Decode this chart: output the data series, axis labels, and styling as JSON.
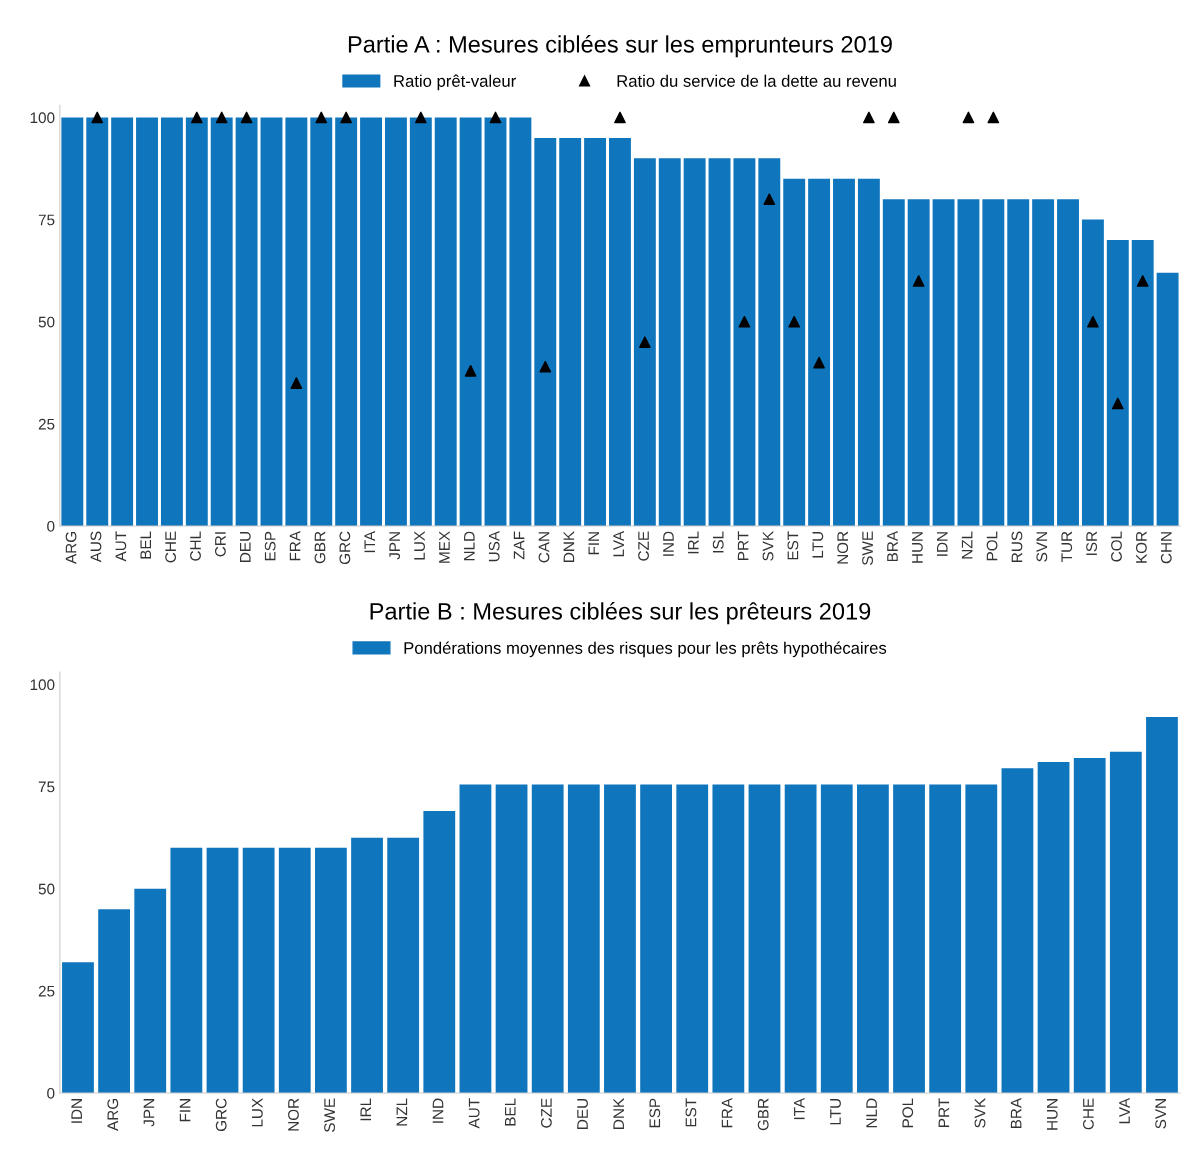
{
  "chart_data": [
    {
      "type": "bar",
      "title": "Partie A : Mesures ciblées sur les emprunteurs 2019",
      "categories": [
        "ARG",
        "AUS",
        "AUT",
        "BEL",
        "CHE",
        "CHL",
        "CRI",
        "DEU",
        "ESP",
        "FRA",
        "GBR",
        "GRC",
        "ITA",
        "JPN",
        "LUX",
        "MEX",
        "NLD",
        "USA",
        "ZAF",
        "CAN",
        "DNK",
        "FIN",
        "LVA",
        "CZE",
        "IND",
        "IRL",
        "ISL",
        "PRT",
        "SVK",
        "EST",
        "LTU",
        "NOR",
        "SWE",
        "BRA",
        "HUN",
        "IDN",
        "NZL",
        "POL",
        "RUS",
        "SVN",
        "TUR",
        "ISR",
        "COL",
        "KOR",
        "CHN"
      ],
      "series": [
        {
          "name": "Ratio prêt-valeur",
          "color": "#0f75bc",
          "values": [
            100,
            100,
            100,
            100,
            100,
            100,
            100,
            100,
            100,
            100,
            100,
            100,
            100,
            100,
            100,
            100,
            100,
            100,
            100,
            95,
            95,
            95,
            95,
            90,
            90,
            90,
            90,
            90,
            90,
            85,
            85,
            85,
            85,
            80,
            80,
            80,
            80,
            80,
            80,
            80,
            80,
            75,
            70,
            70,
            62
          ]
        },
        {
          "name": "Ratio du service de la dette au revenu",
          "type": "scatter",
          "marker": "triangle",
          "color": "#000000",
          "values": [
            null,
            100,
            null,
            null,
            null,
            100,
            100,
            100,
            null,
            35,
            100,
            100,
            null,
            null,
            100,
            null,
            38,
            100,
            null,
            39,
            null,
            null,
            100,
            45,
            null,
            null,
            null,
            50,
            80,
            50,
            40,
            null,
            100,
            100,
            60,
            null,
            100,
            100,
            null,
            null,
            null,
            50,
            30,
            60,
            null
          ]
        }
      ],
      "ylim": [
        0,
        103
      ],
      "yticks": [
        0,
        25,
        50,
        75,
        100
      ],
      "grid": false,
      "legend": "top"
    },
    {
      "type": "bar",
      "title": "Partie B : Mesures ciblées sur les prêteurs 2019",
      "categories": [
        "IDN",
        "ARG",
        "JPN",
        "FIN",
        "GRC",
        "LUX",
        "NOR",
        "SWE",
        "IRL",
        "NZL",
        "IND",
        "AUT",
        "BEL",
        "CZE",
        "DEU",
        "DNK",
        "ESP",
        "EST",
        "FRA",
        "GBR",
        "ITA",
        "LTU",
        "NLD",
        "POL",
        "PRT",
        "SVK",
        "BRA",
        "HUN",
        "CHE",
        "LVA",
        "SVN"
      ],
      "series": [
        {
          "name": "Pondérations moyennes des risques pour les prêts hypothécaires",
          "color": "#0f75bc",
          "values": [
            32,
            45,
            50,
            60,
            60,
            60,
            60,
            60,
            62.5,
            62.5,
            69,
            75.5,
            75.5,
            75.5,
            75.5,
            75.5,
            75.5,
            75.5,
            75.5,
            75.5,
            75.5,
            75.5,
            75.5,
            75.5,
            75.5,
            75.5,
            79.5,
            81,
            82,
            83.5,
            92
          ]
        }
      ],
      "ylim": [
        0,
        103
      ],
      "yticks": [
        0,
        25,
        50,
        75,
        100
      ],
      "grid": false,
      "legend": "top"
    }
  ]
}
